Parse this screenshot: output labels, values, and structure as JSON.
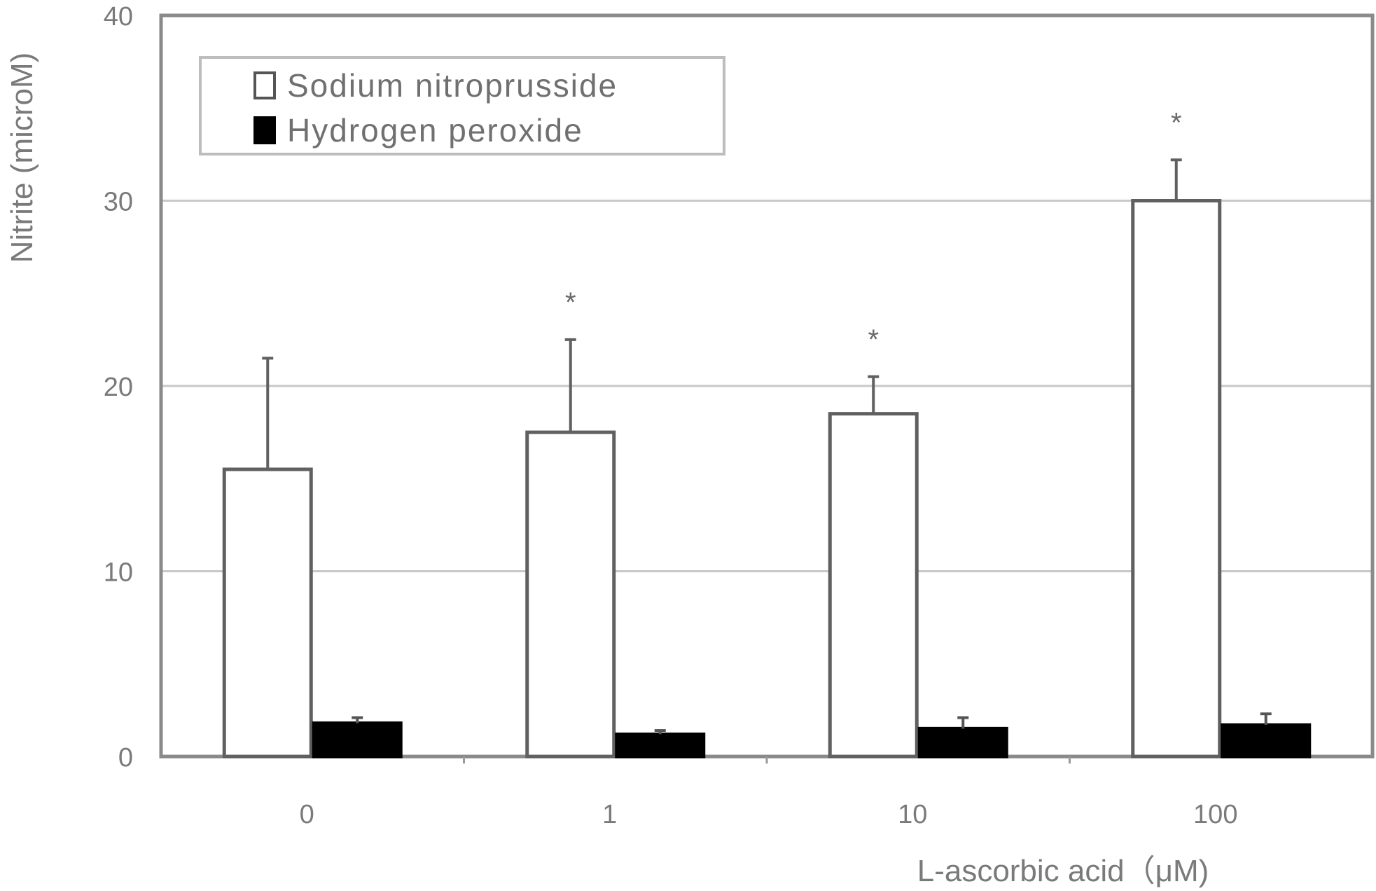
{
  "chart_data": {
    "type": "bar",
    "categories": [
      "0",
      "1",
      "10",
      "100"
    ],
    "series": [
      {
        "name": "Sodium nitroprusside",
        "values": [
          15.5,
          17.5,
          18.5,
          30.0
        ],
        "errors": [
          6.0,
          5.0,
          2.0,
          2.2
        ],
        "fill": "#ffffff",
        "stroke": "#606060"
      },
      {
        "name": "Hydrogen peroxide",
        "values": [
          1.8,
          1.2,
          1.5,
          1.7
        ],
        "errors": [
          0.3,
          0.2,
          0.6,
          0.6
        ],
        "fill": "#000000",
        "stroke": "#000000"
      }
    ],
    "significance": [
      "",
      "*",
      "*",
      "*"
    ],
    "ylabel": "Nitrite (microM)",
    "xlabel": "L-ascorbic acid（μM)",
    "ylim": [
      0,
      40
    ],
    "yticks": [
      "0",
      "10",
      "20",
      "30",
      "40"
    ],
    "grid": true,
    "legend": "top-left"
  }
}
